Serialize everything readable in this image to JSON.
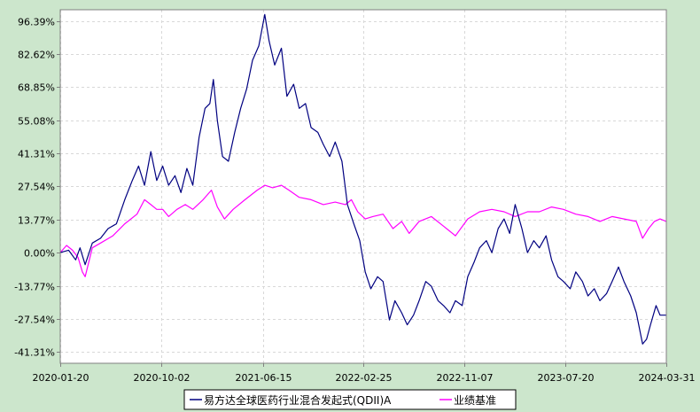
{
  "colors": {
    "background": "#cce6cc",
    "plot_background": "#ffffff",
    "fund_line": "#000080",
    "benchmark_line": "#ff00ff",
    "grid": "#d8d8d8"
  },
  "legend": {
    "fund": "易方达全球医药行业混合发起式(QDII)A",
    "benchmark": "业绩基准"
  },
  "chart_data": {
    "type": "line",
    "x_type": "date",
    "xlim": [
      "2020-01-20",
      "2024-03-31"
    ],
    "ylim": [
      -46.0,
      101.0
    ],
    "y_unit": "%",
    "grid": true,
    "legend_position": "bottom-center",
    "x_tick_labels": [
      "2020-01-20",
      "2020-10-02",
      "2021-06-15",
      "2022-02-25",
      "2022-11-07",
      "2023-07-20",
      "2024-03-31"
    ],
    "y_tick_labels": [
      "96.39%",
      "82.62%",
      "68.85%",
      "55.08%",
      "41.31%",
      "27.54%",
      "13.77%",
      "0.00%",
      "-13.77%",
      "-27.54%",
      "-41.31%"
    ],
    "y_tick_values": [
      96.39,
      82.62,
      68.85,
      55.08,
      41.31,
      27.54,
      13.77,
      0.0,
      -13.77,
      -27.54,
      -41.31
    ],
    "series": [
      {
        "name": "易方达全球医药行业混合发起式(QDII)A",
        "color": "#000080",
        "points": [
          [
            "2020-01-20",
            0.0
          ],
          [
            "2020-02-10",
            1.0
          ],
          [
            "2020-02-28",
            -3.0
          ],
          [
            "2020-03-10",
            2.0
          ],
          [
            "2020-03-23",
            -5.0
          ],
          [
            "2020-04-10",
            4.0
          ],
          [
            "2020-05-01",
            6.0
          ],
          [
            "2020-05-20",
            10.0
          ],
          [
            "2020-06-10",
            12.0
          ],
          [
            "2020-07-01",
            22.0
          ],
          [
            "2020-07-20",
            30.0
          ],
          [
            "2020-08-05",
            36.0
          ],
          [
            "2020-08-20",
            28.0
          ],
          [
            "2020-09-05",
            42.0
          ],
          [
            "2020-09-20",
            30.0
          ],
          [
            "2020-10-05",
            36.0
          ],
          [
            "2020-10-20",
            28.0
          ],
          [
            "2020-11-05",
            32.0
          ],
          [
            "2020-11-20",
            25.0
          ],
          [
            "2020-12-05",
            35.0
          ],
          [
            "2020-12-20",
            28.0
          ],
          [
            "2021-01-05",
            48.0
          ],
          [
            "2021-01-20",
            60.0
          ],
          [
            "2021-02-01",
            62.0
          ],
          [
            "2021-02-10",
            72.0
          ],
          [
            "2021-02-20",
            55.0
          ],
          [
            "2021-03-05",
            40.0
          ],
          [
            "2021-03-20",
            38.0
          ],
          [
            "2021-04-05",
            50.0
          ],
          [
            "2021-04-20",
            60.0
          ],
          [
            "2021-05-05",
            68.0
          ],
          [
            "2021-05-20",
            80.0
          ],
          [
            "2021-06-05",
            86.0
          ],
          [
            "2021-06-20",
            99.0
          ],
          [
            "2021-07-01",
            88.0
          ],
          [
            "2021-07-15",
            78.0
          ],
          [
            "2021-08-01",
            85.0
          ],
          [
            "2021-08-15",
            65.0
          ],
          [
            "2021-09-01",
            70.0
          ],
          [
            "2021-09-15",
            60.0
          ],
          [
            "2021-10-01",
            62.0
          ],
          [
            "2021-10-15",
            52.0
          ],
          [
            "2021-11-01",
            50.0
          ],
          [
            "2021-11-15",
            45.0
          ],
          [
            "2021-12-01",
            40.0
          ],
          [
            "2021-12-15",
            46.0
          ],
          [
            "2022-01-01",
            38.0
          ],
          [
            "2022-01-15",
            20.0
          ],
          [
            "2022-01-31",
            12.0
          ],
          [
            "2022-02-15",
            5.0
          ],
          [
            "2022-03-01",
            -8.0
          ],
          [
            "2022-03-15",
            -15.0
          ],
          [
            "2022-04-01",
            -10.0
          ],
          [
            "2022-04-15",
            -12.0
          ],
          [
            "2022-05-01",
            -28.0
          ],
          [
            "2022-05-15",
            -20.0
          ],
          [
            "2022-06-01",
            -25.0
          ],
          [
            "2022-06-15",
            -30.0
          ],
          [
            "2022-07-01",
            -26.0
          ],
          [
            "2022-07-15",
            -20.0
          ],
          [
            "2022-08-01",
            -12.0
          ],
          [
            "2022-08-15",
            -14.0
          ],
          [
            "2022-09-01",
            -20.0
          ],
          [
            "2022-09-15",
            -22.0
          ],
          [
            "2022-10-01",
            -25.0
          ],
          [
            "2022-10-15",
            -20.0
          ],
          [
            "2022-11-01",
            -22.0
          ],
          [
            "2022-11-15",
            -10.0
          ],
          [
            "2022-12-01",
            -4.0
          ],
          [
            "2022-12-15",
            2.0
          ],
          [
            "2023-01-01",
            5.0
          ],
          [
            "2023-01-15",
            0.0
          ],
          [
            "2023-01-31",
            10.0
          ],
          [
            "2023-02-15",
            14.0
          ],
          [
            "2023-03-01",
            8.0
          ],
          [
            "2023-03-15",
            20.0
          ],
          [
            "2023-04-01",
            10.0
          ],
          [
            "2023-04-15",
            0.0
          ],
          [
            "2023-05-01",
            5.0
          ],
          [
            "2023-05-15",
            2.0
          ],
          [
            "2023-06-01",
            7.0
          ],
          [
            "2023-06-15",
            -3.0
          ],
          [
            "2023-07-01",
            -10.0
          ],
          [
            "2023-07-15",
            -12.0
          ],
          [
            "2023-08-01",
            -15.0
          ],
          [
            "2023-08-15",
            -8.0
          ],
          [
            "2023-09-01",
            -12.0
          ],
          [
            "2023-09-15",
            -18.0
          ],
          [
            "2023-10-01",
            -15.0
          ],
          [
            "2023-10-15",
            -20.0
          ],
          [
            "2023-11-01",
            -17.0
          ],
          [
            "2023-11-15",
            -12.0
          ],
          [
            "2023-12-01",
            -6.0
          ],
          [
            "2023-12-15",
            -12.0
          ],
          [
            "2024-01-01",
            -18.0
          ],
          [
            "2024-01-15",
            -25.0
          ],
          [
            "2024-01-31",
            -38.0
          ],
          [
            "2024-02-10",
            -36.0
          ],
          [
            "2024-02-20",
            -30.0
          ],
          [
            "2024-03-05",
            -22.0
          ],
          [
            "2024-03-15",
            -26.0
          ],
          [
            "2024-03-31",
            -26.0
          ]
        ]
      },
      {
        "name": "业绩基准",
        "color": "#ff00ff",
        "points": [
          [
            "2020-01-20",
            0.0
          ],
          [
            "2020-02-05",
            3.0
          ],
          [
            "2020-02-20",
            1.0
          ],
          [
            "2020-03-05",
            -2.0
          ],
          [
            "2020-03-16",
            -8.0
          ],
          [
            "2020-03-23",
            -10.0
          ],
          [
            "2020-04-10",
            2.0
          ],
          [
            "2020-05-01",
            4.0
          ],
          [
            "2020-06-01",
            7.0
          ],
          [
            "2020-07-01",
            12.0
          ],
          [
            "2020-08-01",
            16.0
          ],
          [
            "2020-08-20",
            22.0
          ],
          [
            "2020-09-05",
            20.0
          ],
          [
            "2020-09-20",
            18.0
          ],
          [
            "2020-10-05",
            18.0
          ],
          [
            "2020-10-20",
            15.0
          ],
          [
            "2020-11-10",
            18.0
          ],
          [
            "2020-12-01",
            20.0
          ],
          [
            "2020-12-20",
            18.0
          ],
          [
            "2021-01-15",
            22.0
          ],
          [
            "2021-02-05",
            26.0
          ],
          [
            "2021-02-20",
            19.0
          ],
          [
            "2021-03-10",
            14.0
          ],
          [
            "2021-04-01",
            18.0
          ],
          [
            "2021-05-01",
            22.0
          ],
          [
            "2021-06-01",
            26.0
          ],
          [
            "2021-06-20",
            28.0
          ],
          [
            "2021-07-10",
            27.0
          ],
          [
            "2021-08-01",
            28.0
          ],
          [
            "2021-08-20",
            26.0
          ],
          [
            "2021-09-15",
            23.0
          ],
          [
            "2021-10-15",
            22.0
          ],
          [
            "2021-11-15",
            20.0
          ],
          [
            "2021-12-15",
            21.0
          ],
          [
            "2022-01-10",
            20.0
          ],
          [
            "2022-01-25",
            22.0
          ],
          [
            "2022-02-10",
            17.0
          ],
          [
            "2022-03-01",
            14.0
          ],
          [
            "2022-03-20",
            15.0
          ],
          [
            "2022-04-15",
            16.0
          ],
          [
            "2022-05-10",
            10.0
          ],
          [
            "2022-06-01",
            13.0
          ],
          [
            "2022-06-20",
            8.0
          ],
          [
            "2022-07-15",
            13.0
          ],
          [
            "2022-08-15",
            15.0
          ],
          [
            "2022-09-15",
            11.0
          ],
          [
            "2022-10-15",
            7.0
          ],
          [
            "2022-11-15",
            14.0
          ],
          [
            "2022-12-15",
            17.0
          ],
          [
            "2023-01-15",
            18.0
          ],
          [
            "2023-02-15",
            17.0
          ],
          [
            "2023-03-15",
            15.0
          ],
          [
            "2023-04-15",
            17.0
          ],
          [
            "2023-05-15",
            17.0
          ],
          [
            "2023-06-15",
            19.0
          ],
          [
            "2023-07-15",
            18.0
          ],
          [
            "2023-08-15",
            16.0
          ],
          [
            "2023-09-15",
            15.0
          ],
          [
            "2023-10-15",
            13.0
          ],
          [
            "2023-11-15",
            15.0
          ],
          [
            "2023-12-15",
            14.0
          ],
          [
            "2024-01-15",
            13.0
          ],
          [
            "2024-01-31",
            6.0
          ],
          [
            "2024-02-15",
            10.0
          ],
          [
            "2024-03-01",
            13.0
          ],
          [
            "2024-03-15",
            14.0
          ],
          [
            "2024-03-31",
            13.0
          ]
        ]
      }
    ]
  }
}
